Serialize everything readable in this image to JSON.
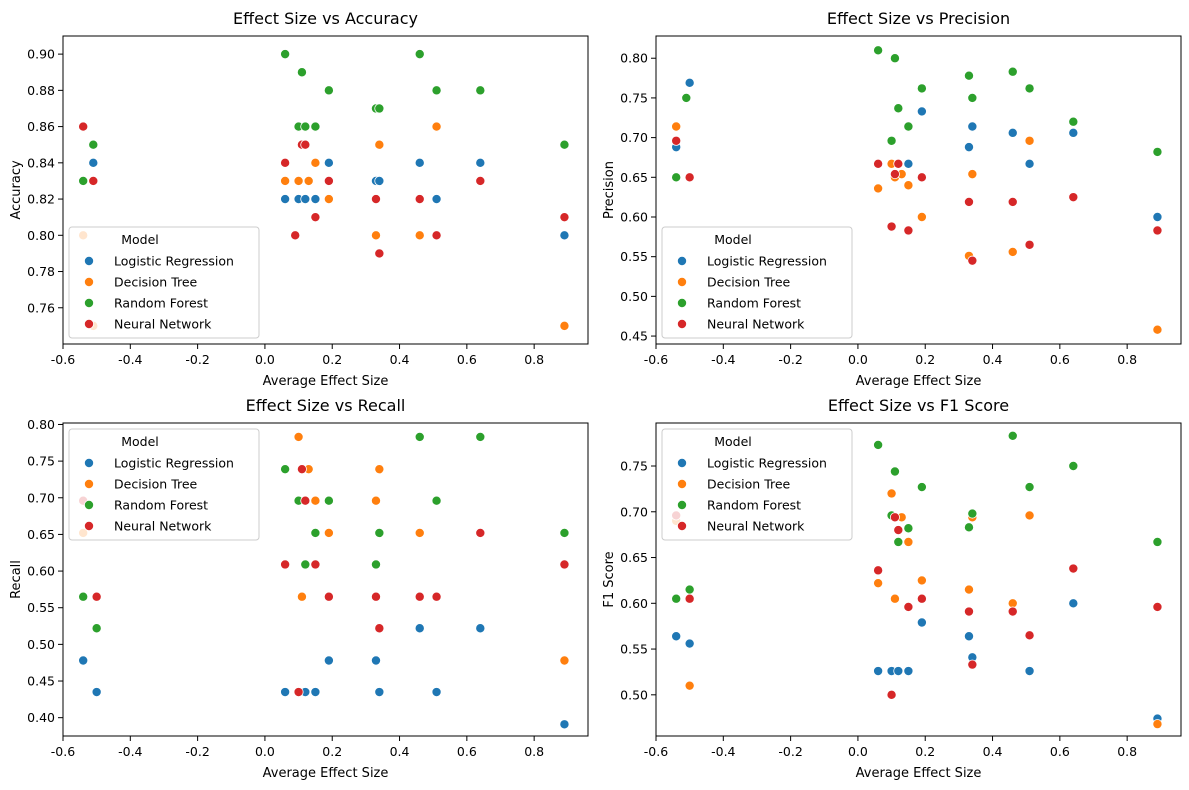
{
  "figure": {
    "legend_title": "Model",
    "series_names": [
      "Logistic Regression",
      "Decision Tree",
      "Random Forest",
      "Neural Network"
    ],
    "colors": {
      "Logistic Regression": "#1f77b4",
      "Decision Tree": "#ff7f0e",
      "Random Forest": "#2ca02c",
      "Neural Network": "#d62728"
    }
  },
  "chart_data": [
    {
      "type": "scatter",
      "title": "Effect Size vs Accuracy",
      "xlabel": "Average Effect Size",
      "ylabel": "Accuracy",
      "xlim": [
        -0.6,
        0.96
      ],
      "ylim": [
        0.74,
        0.91
      ],
      "xticks": [
        "-0.6",
        "-0.4",
        "-0.2",
        "0.0",
        "0.2",
        "0.4",
        "0.6",
        "0.8"
      ],
      "yticks": [
        "0.76",
        "0.78",
        "0.80",
        "0.82",
        "0.84",
        "0.86",
        "0.88",
        "0.90"
      ],
      "legend_position": "lower left",
      "series": [
        {
          "name": "Logistic Regression",
          "points": [
            [
              -0.54,
              0.83
            ],
            [
              -0.51,
              0.84
            ],
            [
              0.06,
              0.82
            ],
            [
              0.1,
              0.82
            ],
            [
              0.12,
              0.82
            ],
            [
              0.15,
              0.82
            ],
            [
              0.19,
              0.84
            ],
            [
              0.33,
              0.83
            ],
            [
              0.34,
              0.83
            ],
            [
              0.46,
              0.84
            ],
            [
              0.51,
              0.82
            ],
            [
              0.64,
              0.84
            ],
            [
              0.89,
              0.8
            ]
          ]
        },
        {
          "name": "Decision Tree",
          "points": [
            [
              -0.54,
              0.8
            ],
            [
              -0.51,
              0.75
            ],
            [
              0.06,
              0.83
            ],
            [
              0.1,
              0.83
            ],
            [
              0.13,
              0.83
            ],
            [
              0.15,
              0.84
            ],
            [
              0.19,
              0.82
            ],
            [
              0.33,
              0.8
            ],
            [
              0.34,
              0.85
            ],
            [
              0.46,
              0.8
            ],
            [
              0.51,
              0.86
            ],
            [
              0.89,
              0.75
            ]
          ]
        },
        {
          "name": "Random Forest",
          "points": [
            [
              -0.54,
              0.83
            ],
            [
              -0.51,
              0.85
            ],
            [
              0.06,
              0.9
            ],
            [
              0.1,
              0.86
            ],
            [
              0.11,
              0.89
            ],
            [
              0.12,
              0.86
            ],
            [
              0.15,
              0.86
            ],
            [
              0.19,
              0.88
            ],
            [
              0.33,
              0.87
            ],
            [
              0.34,
              0.87
            ],
            [
              0.46,
              0.9
            ],
            [
              0.51,
              0.88
            ],
            [
              0.64,
              0.88
            ],
            [
              0.89,
              0.85
            ]
          ]
        },
        {
          "name": "Neural Network",
          "points": [
            [
              -0.54,
              0.86
            ],
            [
              -0.51,
              0.83
            ],
            [
              0.06,
              0.84
            ],
            [
              0.09,
              0.8
            ],
            [
              0.11,
              0.85
            ],
            [
              0.12,
              0.85
            ],
            [
              0.15,
              0.81
            ],
            [
              0.19,
              0.83
            ],
            [
              0.33,
              0.82
            ],
            [
              0.34,
              0.79
            ],
            [
              0.46,
              0.82
            ],
            [
              0.51,
              0.8
            ],
            [
              0.64,
              0.83
            ],
            [
              0.89,
              0.81
            ]
          ]
        }
      ]
    },
    {
      "type": "scatter",
      "title": "Effect Size vs Precision",
      "xlabel": "Average Effect Size",
      "ylabel": "Precision",
      "xlim": [
        -0.6,
        0.96
      ],
      "ylim": [
        0.44,
        0.828
      ],
      "xticks": [
        "-0.6",
        "-0.4",
        "-0.2",
        "0.0",
        "0.2",
        "0.4",
        "0.6",
        "0.8"
      ],
      "yticks": [
        "0.45",
        "0.50",
        "0.55",
        "0.60",
        "0.65",
        "0.70",
        "0.75",
        "0.80"
      ],
      "legend_position": "lower left",
      "series": [
        {
          "name": "Logistic Regression",
          "points": [
            [
              -0.54,
              0.688
            ],
            [
              -0.5,
              0.769
            ],
            [
              0.1,
              0.667
            ],
            [
              0.12,
              0.667
            ],
            [
              0.15,
              0.667
            ],
            [
              0.19,
              0.733
            ],
            [
              0.33,
              0.688
            ],
            [
              0.34,
              0.714
            ],
            [
              0.46,
              0.706
            ],
            [
              0.51,
              0.667
            ],
            [
              0.64,
              0.706
            ],
            [
              0.89,
              0.6
            ]
          ]
        },
        {
          "name": "Decision Tree",
          "points": [
            [
              -0.54,
              0.714
            ],
            [
              0.06,
              0.636
            ],
            [
              0.1,
              0.667
            ],
            [
              0.11,
              0.65
            ],
            [
              0.13,
              0.654
            ],
            [
              0.15,
              0.64
            ],
            [
              0.19,
              0.6
            ],
            [
              0.33,
              0.551
            ],
            [
              0.34,
              0.654
            ],
            [
              0.46,
              0.556
            ],
            [
              0.51,
              0.696
            ],
            [
              0.89,
              0.458
            ]
          ]
        },
        {
          "name": "Random Forest",
          "points": [
            [
              -0.54,
              0.65
            ],
            [
              -0.51,
              0.75
            ],
            [
              0.06,
              0.81
            ],
            [
              0.1,
              0.696
            ],
            [
              0.11,
              0.8
            ],
            [
              0.12,
              0.737
            ],
            [
              0.15,
              0.714
            ],
            [
              0.19,
              0.762
            ],
            [
              0.33,
              0.778
            ],
            [
              0.34,
              0.75
            ],
            [
              0.46,
              0.783
            ],
            [
              0.51,
              0.762
            ],
            [
              0.64,
              0.72
            ],
            [
              0.89,
              0.682
            ]
          ]
        },
        {
          "name": "Neural Network",
          "points": [
            [
              -0.54,
              0.696
            ],
            [
              -0.5,
              0.65
            ],
            [
              0.06,
              0.667
            ],
            [
              0.1,
              0.588
            ],
            [
              0.11,
              0.654
            ],
            [
              0.12,
              0.667
            ],
            [
              0.15,
              0.583
            ],
            [
              0.19,
              0.65
            ],
            [
              0.33,
              0.619
            ],
            [
              0.34,
              0.545
            ],
            [
              0.46,
              0.619
            ],
            [
              0.51,
              0.565
            ],
            [
              0.64,
              0.625
            ],
            [
              0.89,
              0.583
            ]
          ]
        }
      ]
    },
    {
      "type": "scatter",
      "title": "Effect Size vs Recall",
      "xlabel": "Average Effect Size",
      "ylabel": "Recall",
      "xlim": [
        -0.6,
        0.96
      ],
      "ylim": [
        0.375,
        0.802
      ],
      "xticks": [
        "-0.6",
        "-0.4",
        "-0.2",
        "0.0",
        "0.2",
        "0.4",
        "0.6",
        "0.8"
      ],
      "yticks": [
        "0.40",
        "0.45",
        "0.50",
        "0.55",
        "0.60",
        "0.65",
        "0.70",
        "0.75",
        "0.80"
      ],
      "legend_position": "upper left",
      "series": [
        {
          "name": "Logistic Regression",
          "points": [
            [
              -0.54,
              0.478
            ],
            [
              -0.5,
              0.435
            ],
            [
              0.06,
              0.435
            ],
            [
              0.12,
              0.435
            ],
            [
              0.15,
              0.435
            ],
            [
              0.19,
              0.478
            ],
            [
              0.33,
              0.478
            ],
            [
              0.34,
              0.435
            ],
            [
              0.46,
              0.522
            ],
            [
              0.51,
              0.435
            ],
            [
              0.64,
              0.522
            ],
            [
              0.89,
              0.391
            ]
          ]
        },
        {
          "name": "Decision Tree",
          "points": [
            [
              -0.54,
              0.652
            ],
            [
              0.1,
              0.783
            ],
            [
              0.11,
              0.565
            ],
            [
              0.13,
              0.739
            ],
            [
              0.15,
              0.696
            ],
            [
              0.19,
              0.652
            ],
            [
              0.33,
              0.696
            ],
            [
              0.34,
              0.739
            ],
            [
              0.46,
              0.652
            ],
            [
              0.89,
              0.478
            ]
          ]
        },
        {
          "name": "Random Forest",
          "points": [
            [
              -0.54,
              0.565
            ],
            [
              -0.5,
              0.522
            ],
            [
              0.06,
              0.739
            ],
            [
              0.1,
              0.696
            ],
            [
              0.12,
              0.609
            ],
            [
              0.15,
              0.652
            ],
            [
              0.19,
              0.696
            ],
            [
              0.33,
              0.609
            ],
            [
              0.34,
              0.652
            ],
            [
              0.46,
              0.783
            ],
            [
              0.51,
              0.696
            ],
            [
              0.64,
              0.783
            ],
            [
              0.89,
              0.652
            ]
          ]
        },
        {
          "name": "Neural Network",
          "points": [
            [
              -0.54,
              0.696
            ],
            [
              -0.5,
              0.565
            ],
            [
              0.06,
              0.609
            ],
            [
              0.1,
              0.435
            ],
            [
              0.11,
              0.739
            ],
            [
              0.12,
              0.696
            ],
            [
              0.15,
              0.609
            ],
            [
              0.19,
              0.565
            ],
            [
              0.33,
              0.565
            ],
            [
              0.34,
              0.522
            ],
            [
              0.46,
              0.565
            ],
            [
              0.51,
              0.565
            ],
            [
              0.64,
              0.652
            ],
            [
              0.89,
              0.609
            ]
          ]
        }
      ]
    },
    {
      "type": "scatter",
      "title": "Effect Size vs F1 Score",
      "xlabel": "Average Effect Size",
      "ylabel": "F1 Score",
      "xlim": [
        -0.6,
        0.96
      ],
      "ylim": [
        0.455,
        0.797
      ],
      "xticks": [
        "-0.6",
        "-0.4",
        "-0.2",
        "0.0",
        "0.2",
        "0.4",
        "0.6",
        "0.8"
      ],
      "yticks": [
        "0.50",
        "0.55",
        "0.60",
        "0.65",
        "0.70",
        "0.75"
      ],
      "legend_position": "upper left",
      "series": [
        {
          "name": "Logistic Regression",
          "points": [
            [
              -0.54,
              0.564
            ],
            [
              -0.5,
              0.556
            ],
            [
              0.06,
              0.526
            ],
            [
              0.1,
              0.526
            ],
            [
              0.12,
              0.526
            ],
            [
              0.15,
              0.526
            ],
            [
              0.19,
              0.579
            ],
            [
              0.33,
              0.564
            ],
            [
              0.34,
              0.541
            ],
            [
              0.46,
              0.6
            ],
            [
              0.51,
              0.526
            ],
            [
              0.64,
              0.6
            ],
            [
              0.89,
              0.474
            ]
          ]
        },
        {
          "name": "Decision Tree",
          "points": [
            [
              -0.54,
              0.69
            ],
            [
              -0.5,
              0.51
            ],
            [
              0.06,
              0.622
            ],
            [
              0.1,
              0.72
            ],
            [
              0.11,
              0.605
            ],
            [
              0.13,
              0.694
            ],
            [
              0.15,
              0.667
            ],
            [
              0.19,
              0.625
            ],
            [
              0.33,
              0.615
            ],
            [
              0.34,
              0.694
            ],
            [
              0.46,
              0.6
            ],
            [
              0.51,
              0.696
            ],
            [
              0.89,
              0.468
            ]
          ]
        },
        {
          "name": "Random Forest",
          "points": [
            [
              -0.54,
              0.605
            ],
            [
              -0.5,
              0.615
            ],
            [
              0.06,
              0.773
            ],
            [
              0.1,
              0.696
            ],
            [
              0.11,
              0.744
            ],
            [
              0.12,
              0.667
            ],
            [
              0.15,
              0.682
            ],
            [
              0.19,
              0.727
            ],
            [
              0.33,
              0.683
            ],
            [
              0.34,
              0.698
            ],
            [
              0.46,
              0.783
            ],
            [
              0.51,
              0.727
            ],
            [
              0.64,
              0.75
            ],
            [
              0.89,
              0.667
            ]
          ]
        },
        {
          "name": "Neural Network",
          "points": [
            [
              -0.54,
              0.696
            ],
            [
              -0.5,
              0.605
            ],
            [
              0.06,
              0.636
            ],
            [
              0.1,
              0.5
            ],
            [
              0.11,
              0.694
            ],
            [
              0.12,
              0.68
            ],
            [
              0.15,
              0.596
            ],
            [
              0.19,
              0.605
            ],
            [
              0.33,
              0.591
            ],
            [
              0.34,
              0.533
            ],
            [
              0.46,
              0.591
            ],
            [
              0.51,
              0.565
            ],
            [
              0.64,
              0.638
            ],
            [
              0.89,
              0.596
            ]
          ]
        }
      ]
    }
  ]
}
